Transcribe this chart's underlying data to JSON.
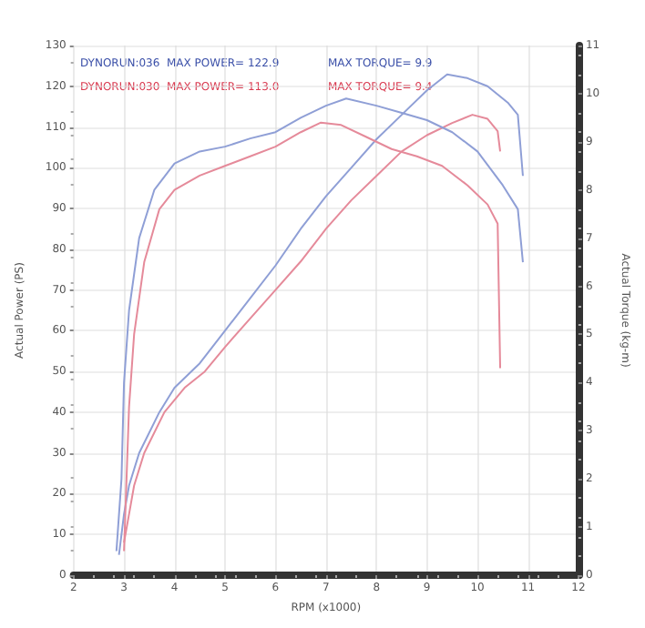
{
  "chart_data": {
    "type": "line",
    "xlabel": "RPM (x1000)",
    "ylabel": "Actual Power (PS)",
    "y2label": "Actual Torque (kg-m)",
    "annotations": [
      "DYNORUN:036  MAX POWER= 122.9",
      "DYNORUN:030  MAX POWER= 113.0",
      "MAX TORQUE= 9.9",
      "MAX TORQUE= 9.4"
    ],
    "xlim": [
      2,
      12
    ],
    "xticks": [
      2,
      3,
      4,
      5,
      6,
      7,
      8,
      9,
      10,
      11,
      12
    ],
    "ylim": [
      0,
      130
    ],
    "yticks": [
      0,
      10,
      20,
      30,
      40,
      50,
      60,
      70,
      80,
      90,
      100,
      110,
      120,
      130
    ],
    "y2lim": [
      0,
      11
    ],
    "y2ticks": [
      0,
      1,
      2,
      3,
      4,
      5,
      6,
      7,
      8,
      9,
      10,
      11
    ],
    "grid": true,
    "marker": "none",
    "line_style": "solid",
    "series": [
      {
        "color": "#8f9fd6",
        "x": [
          2.9,
          3.0,
          3.1,
          3.3,
          3.7,
          4.0,
          4.5,
          5.0,
          5.5,
          6.0,
          6.5,
          7.0,
          7.5,
          8.0,
          8.5,
          9.0,
          9.4,
          9.8,
          10.2,
          10.6,
          10.8,
          10.9
        ],
        "values": [
          5,
          15,
          22,
          30,
          40,
          46,
          52,
          60,
          68,
          76,
          85,
          93,
          100,
          107,
          113,
          119,
          122.9,
          122,
          120,
          116,
          113,
          98
        ]
      },
      {
        "color": "#e58a9a",
        "x": [
          3.0,
          3.1,
          3.2,
          3.4,
          3.8,
          4.2,
          4.6,
          5.0,
          5.5,
          6.0,
          6.5,
          7.0,
          7.5,
          8.0,
          8.5,
          9.0,
          9.5,
          9.9,
          10.2,
          10.4,
          10.45
        ],
        "values": [
          8,
          15,
          22,
          30,
          40,
          46,
          50,
          56,
          63,
          70,
          77,
          85,
          92,
          98,
          104,
          108,
          111,
          113,
          112,
          109,
          104
        ]
      },
      {
        "color": "#8f9fd6",
        "axis": "y2",
        "x": [
          2.85,
          2.95,
          3.0,
          3.1,
          3.3,
          3.6,
          4.0,
          4.5,
          5.0,
          5.5,
          6.0,
          6.5,
          7.0,
          7.4,
          8.0,
          8.5,
          9.0,
          9.5,
          10.0,
          10.5,
          10.8,
          10.9
        ],
        "values": [
          0.5,
          2,
          4,
          5.5,
          7,
          8,
          8.55,
          8.8,
          8.9,
          9.07,
          9.2,
          9.5,
          9.75,
          9.9,
          9.75,
          9.6,
          9.45,
          9.2,
          8.8,
          8.1,
          7.6,
          6.5
        ]
      },
      {
        "color": "#e58a9a",
        "axis": "y2",
        "x": [
          3.0,
          3.05,
          3.1,
          3.2,
          3.4,
          3.7,
          4.0,
          4.5,
          5.0,
          5.5,
          6.0,
          6.5,
          6.9,
          7.3,
          7.8,
          8.3,
          8.8,
          9.3,
          9.8,
          10.2,
          10.4,
          10.45
        ],
        "values": [
          0.5,
          2,
          3.5,
          5,
          6.5,
          7.6,
          8.0,
          8.3,
          8.5,
          8.7,
          8.9,
          9.2,
          9.4,
          9.35,
          9.1,
          8.85,
          8.7,
          8.5,
          8.1,
          7.7,
          7.3,
          4.3
        ]
      }
    ]
  }
}
